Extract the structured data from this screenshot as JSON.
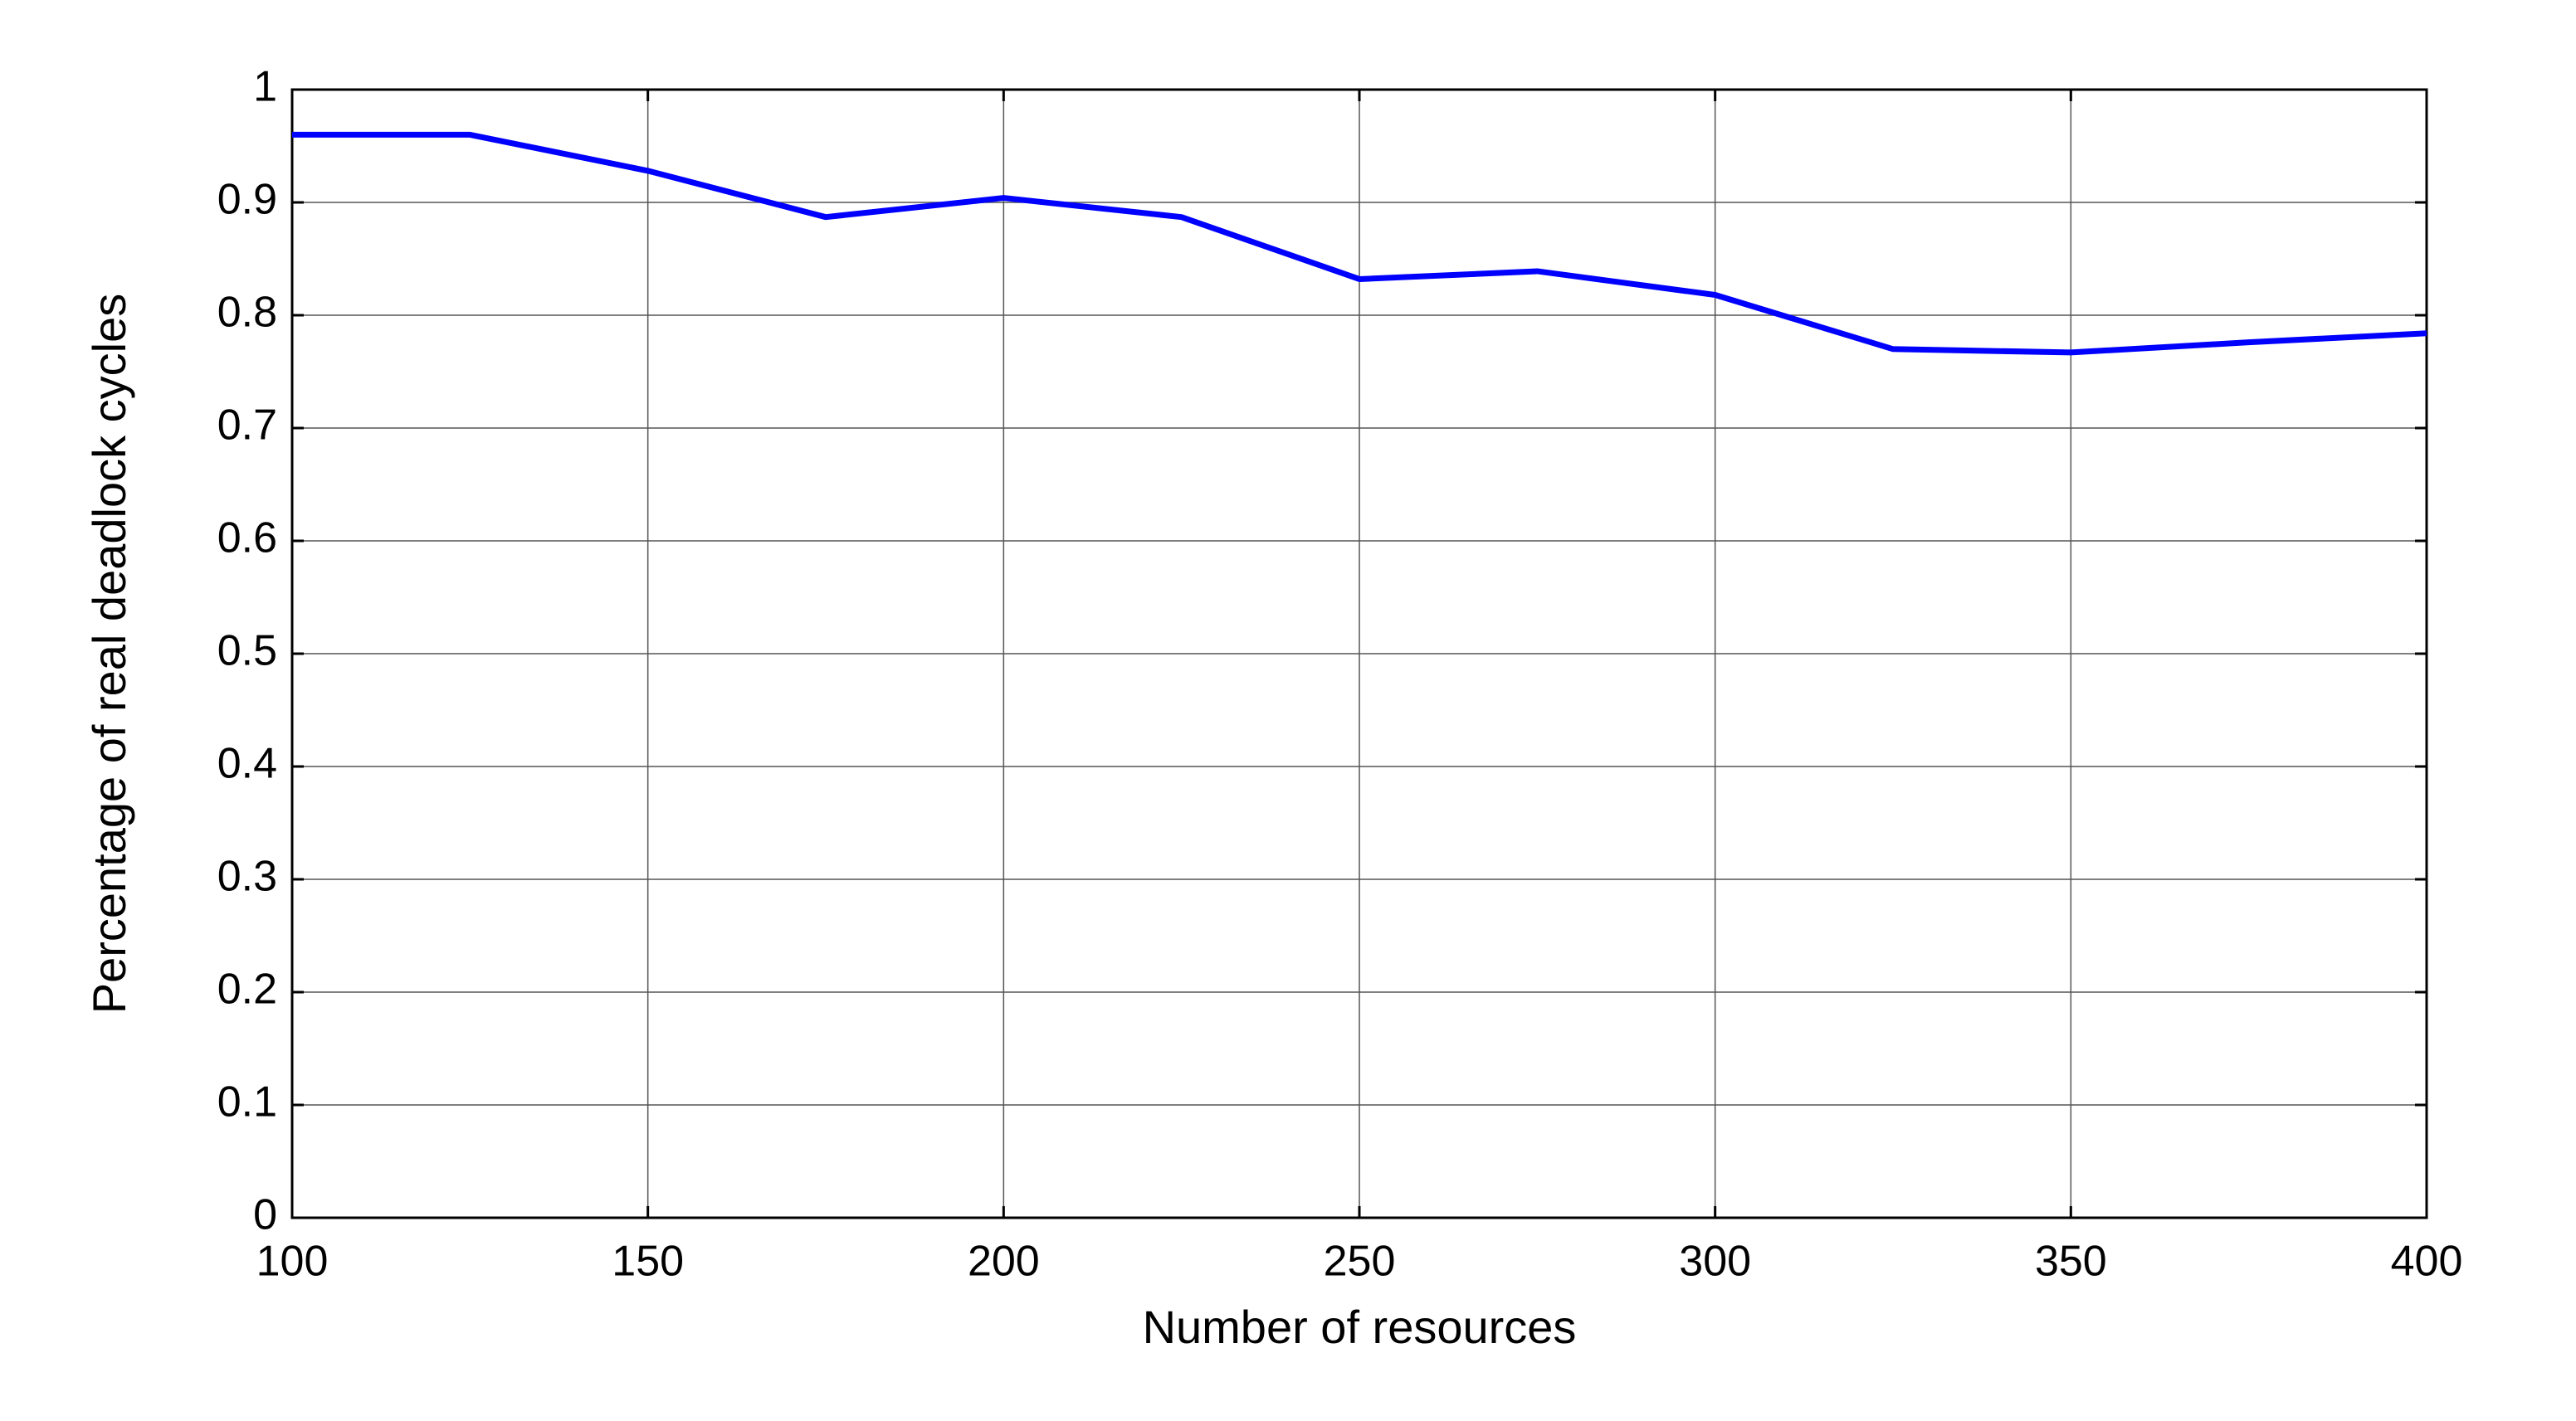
{
  "chart_data": {
    "type": "line",
    "x_label": "Number of resources",
    "y_label": "Percentage of real deadlock cycles",
    "x": [
      100,
      125,
      150,
      175,
      200,
      225,
      250,
      275,
      300,
      325,
      350,
      375,
      400
    ],
    "series": [
      {
        "color": "#0000ff",
        "values": [
          0.96,
          0.96,
          0.928,
          0.887,
          0.904,
          0.887,
          0.832,
          0.839,
          0.818,
          0.77,
          0.767,
          0.776,
          0.784
        ]
      }
    ],
    "xlim": [
      100,
      400
    ],
    "xticks": [
      100,
      150,
      200,
      250,
      300,
      350,
      400
    ],
    "ylim": [
      0,
      1
    ],
    "yticks": [
      0,
      0.1,
      0.2,
      0.3,
      0.4,
      0.5,
      0.6,
      0.7,
      0.8,
      0.9,
      1
    ],
    "grid": true
  }
}
